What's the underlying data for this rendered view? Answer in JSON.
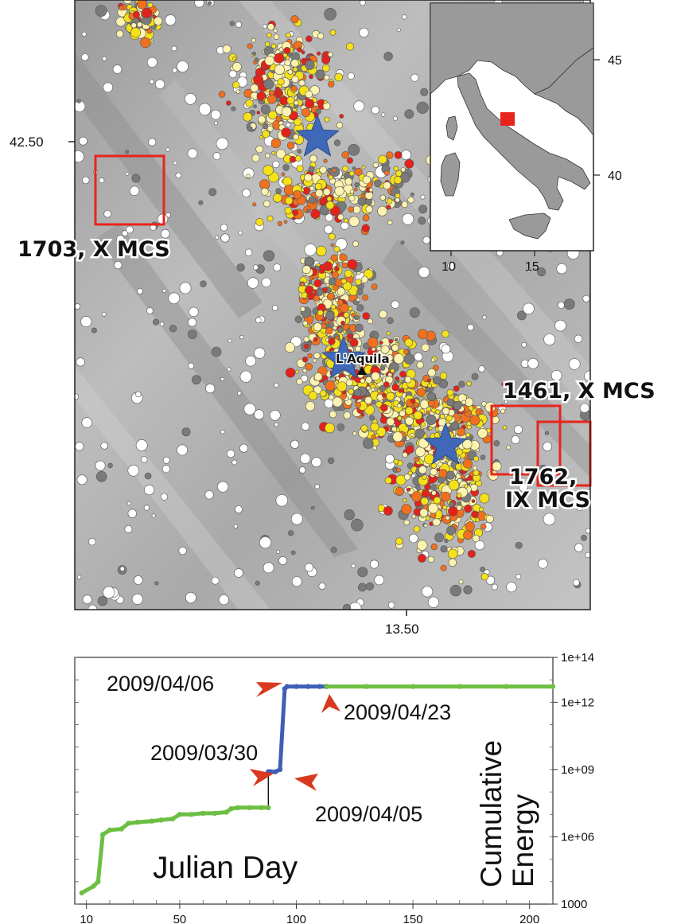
{
  "map": {
    "lat_tick": "42.50",
    "lon_tick": "13.50",
    "labels": {
      "site_1703": "1703, X MCS",
      "site_1461": "1461, X MCS",
      "site_1762_line1": "1762,",
      "site_1762_line2": "IX MCS",
      "city": "L'Aquila"
    },
    "inset": {
      "lat_ticks": [
        "45",
        "40"
      ],
      "lon_ticks": [
        "10",
        "15"
      ]
    },
    "colors": {
      "white_events": "#ffffff",
      "gray_events": "#7a7a7a",
      "pale_yellow_events": "#fdf3b0",
      "yellow_events": "#f5e11a",
      "orange_events": "#f0701e",
      "red_events": "#e3221b",
      "mainshock_star": "#3f69b8",
      "historic_box": "#e8241c"
    }
  },
  "chart_data": {
    "type": "line",
    "xlabel": "Julian Day",
    "ylabel_line1": "Cumulative",
    "ylabel_line2": "Energy",
    "x_ticks": [
      "10",
      "50",
      "100",
      "150",
      "200"
    ],
    "x_tick_values": [
      10,
      50,
      100,
      150,
      200
    ],
    "y_ticks": [
      "1000",
      "1e+06",
      "1e+09",
      "1e+12",
      "1e+14"
    ],
    "y_tick_values": [
      1000,
      1000000,
      1000000000,
      1000000000000,
      100000000000000
    ],
    "xlim": [
      5,
      210
    ],
    "ylim_log10": [
      3,
      14
    ],
    "y_scale": "log",
    "series": [
      {
        "color": "#6dbf43",
        "x": [
          8,
          13,
          15,
          17,
          20,
          25,
          28,
          32,
          38,
          42,
          47,
          50,
          55,
          60,
          65,
          70,
          72,
          75,
          80,
          85,
          88
        ],
        "y_log10": [
          3.5,
          3.8,
          4.0,
          6.1,
          6.3,
          6.35,
          6.6,
          6.65,
          6.7,
          6.75,
          6.8,
          7.0,
          7.0,
          7.05,
          7.05,
          7.1,
          7.25,
          7.3,
          7.3,
          7.3,
          7.3
        ]
      },
      {
        "color": "#3f5fb5",
        "x": [
          88,
          89,
          91,
          93,
          95,
          96,
          100,
          105,
          110,
          113
        ],
        "y_log10": [
          8.9,
          8.9,
          8.9,
          9.0,
          12.6,
          12.7,
          12.7,
          12.7,
          12.7,
          12.7
        ]
      },
      {
        "color": "#6dbf43",
        "x": [
          113,
          130,
          150,
          170,
          190,
          210
        ],
        "y_log10": [
          12.7,
          12.7,
          12.7,
          12.7,
          12.7,
          12.7
        ]
      }
    ],
    "annotations": [
      {
        "text": "2009/04/06"
      },
      {
        "text": "2009/03/30"
      },
      {
        "text": "2009/04/05"
      },
      {
        "text": "2009/04/23"
      }
    ]
  }
}
